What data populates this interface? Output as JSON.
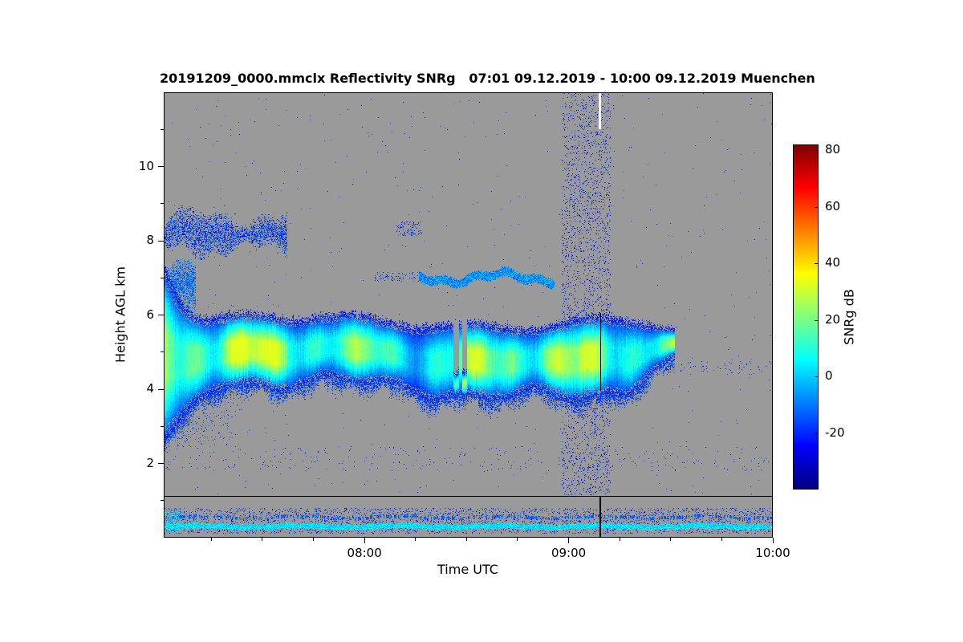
{
  "figure": {
    "title": "20191209_0000.mmclx Reflectivity SNRg   07:01 09.12.2019 - 10:00 09.12.2019 Muenchen",
    "xlabel": "Time UTC",
    "ylabel": "Height AGL km",
    "colorbar_label": "SNRg dB"
  },
  "chart_data": {
    "type": "heatmap",
    "title": "20191209_0000.mmclx Reflectivity SNRg 07:01 09.12.2019 - 10:00 09.12.2019 Muenchen",
    "xlabel": "Time UTC",
    "ylabel": "Height AGL km",
    "x_start_hour": 7.0167,
    "x_end_hour": 10.0,
    "x_ticks": [
      {
        "hour": 8,
        "label": "08:00"
      },
      {
        "hour": 9,
        "label": "09:00"
      },
      {
        "hour": 10,
        "label": "10:00"
      }
    ],
    "x_minor_step_hours": 0.25,
    "y_min_km": 0,
    "y_max_km": 12,
    "y_ticks": [
      2,
      4,
      6,
      8,
      10
    ],
    "y_minor_ticks": [
      1,
      3,
      5,
      7,
      9,
      11
    ],
    "colorbar": {
      "label": "SNRg dB",
      "min_db": -40,
      "max_db": 82,
      "ticks": [
        80,
        60,
        40,
        20,
        0,
        -20
      ]
    },
    "no_signal_color": "#9a9a9a",
    "features": [
      {
        "kind": "speckle",
        "name": "background-noise-dots",
        "x0": 7.0167,
        "x1": 10.0,
        "km0": 1.15,
        "km1": 12.0,
        "density": 0.0016,
        "db": -20,
        "db_jitter": 9
      },
      {
        "kind": "speckle",
        "name": "interference-band",
        "x0": 8.97,
        "x1": 9.205,
        "km0": 1.15,
        "km1": 12.0,
        "density": 0.085,
        "db": -23,
        "db_jitter": 9
      },
      {
        "kind": "speckle",
        "name": "dotted-rows-2km",
        "x0": 7.0167,
        "x1": 10.0,
        "km0": 1.8,
        "km1": 2.45,
        "density": 0.012,
        "db": -21,
        "db_jitter": 7
      },
      {
        "kind": "speckle",
        "name": "dots-right-4p5km",
        "x0": 9.55,
        "x1": 10.0,
        "km0": 4.4,
        "km1": 4.75,
        "density": 0.035,
        "db": -20,
        "db_jitter": 6
      },
      {
        "kind": "ragged_patch",
        "name": "cirrus-layer",
        "x0": 7.0167,
        "x1": 7.62,
        "base": 7.75,
        "top": 8.65,
        "density": 0.6,
        "db": -17,
        "db_jitter": 9,
        "wave": 0.18
      },
      {
        "kind": "ragged_patch",
        "name": "left-midlevel-echo",
        "x0": 7.0167,
        "x1": 7.17,
        "base": 6.15,
        "top": 7.35,
        "density": 0.75,
        "db": -12,
        "db_jitter": 9,
        "wave": 0.1
      },
      {
        "kind": "speckle",
        "name": "small-patch-8km",
        "x0": 8.16,
        "x1": 8.28,
        "km0": 8.15,
        "km1": 8.5,
        "density": 0.18,
        "db": -20,
        "db_jitter": 6
      },
      {
        "kind": "speckle",
        "name": "virga-below-cloud",
        "x0": 7.0167,
        "x1": 7.45,
        "km0": 2.45,
        "km1": 3.95,
        "density": 0.3,
        "db": -17,
        "db_jitter": 7,
        "fade_x": true,
        "fade_down": true
      },
      {
        "kind": "speckle",
        "name": "midlevel-layer-lead-in",
        "x0": 8.05,
        "x1": 8.27,
        "km0": 6.9,
        "km1": 7.15,
        "density": 0.12,
        "db": -18,
        "db_jitter": 6
      },
      {
        "kind": "thin_layer",
        "name": "midlevel-layer-7km",
        "x0": 8.27,
        "x1": 8.93,
        "km": 7.0,
        "thickness": 0.22,
        "db": -7,
        "db_jitter": 9,
        "wave": 0.12
      },
      {
        "kind": "main_cloud",
        "name": "main-cloud-layer",
        "x0": 7.0167,
        "x1": 9.52,
        "base_km": 4.0,
        "top_km": 5.8,
        "base_amp": 0.45,
        "top_amp": 0.3,
        "core_db": 24,
        "edge_db": -24,
        "left_deepen_until": 7.3,
        "left_base_km": 2.55,
        "left_top_km": 7.3,
        "tip_start": 9.28,
        "tip_base": 4.95,
        "tip_top": 5.55,
        "notches": [
          8.45,
          8.49
        ]
      },
      {
        "kind": "speckle",
        "name": "boundary-layer-speckle",
        "x0": 7.0167,
        "x1": 10.0,
        "km0": 0.12,
        "km1": 0.8,
        "density": 0.13,
        "db": -20,
        "db_jitter": 8
      },
      {
        "kind": "speckle",
        "name": "boundary-layer-left-bright",
        "x0": 7.0167,
        "x1": 7.1,
        "km0": 0.15,
        "km1": 0.7,
        "density": 0.5,
        "db": -2,
        "db_jitter": 10
      },
      {
        "kind": "thin_layer",
        "name": "surface-echo-line",
        "x0": 7.0167,
        "x1": 10.0,
        "km": 0.3,
        "thickness": 0.12,
        "db": 2,
        "db_jitter": 7,
        "wave": 0.02
      },
      {
        "kind": "thin_layer",
        "name": "surface-echo-line-2",
        "x0": 7.0167,
        "x1": 10.0,
        "km": 0.55,
        "thickness": 0.06,
        "db": -13,
        "db_jitter": 6,
        "wave": 0.03,
        "gap": 0.55
      },
      {
        "kind": "hline",
        "name": "gate-boundary-line",
        "km": 1.12,
        "color": "#000000",
        "width": 1
      },
      {
        "kind": "vline",
        "name": "file-break-line-low",
        "hour": 9.155,
        "km0": 0.0,
        "km1": 1.12,
        "color": "#000000",
        "width": 2
      },
      {
        "kind": "vline",
        "name": "file-break-line-cloud",
        "hour": 9.155,
        "km0": 3.95,
        "km1": 6.05,
        "color": "#000000",
        "width": 1
      },
      {
        "kind": "vline",
        "name": "file-break-white-top",
        "hour": 9.152,
        "km0": 11.0,
        "km1": 12.0,
        "color": "#ffffff",
        "width": 3
      }
    ]
  }
}
